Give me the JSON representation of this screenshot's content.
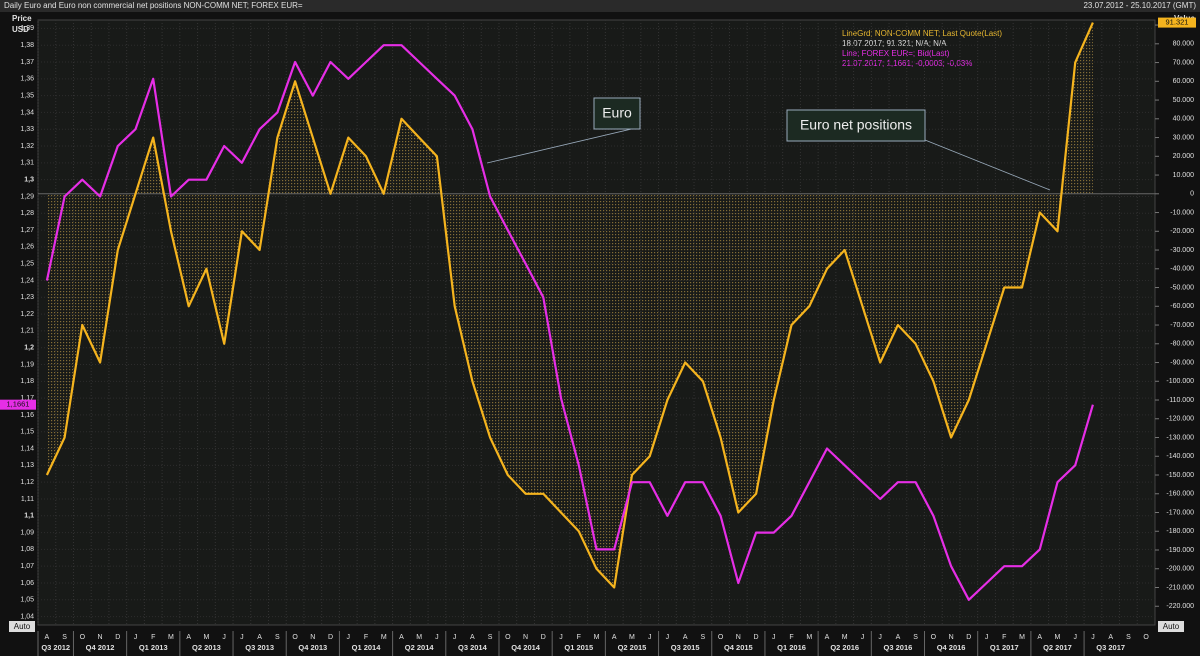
{
  "chart_data": {
    "type": "line",
    "title": "Daily Euro and Euro non commercial net positions NON-COMM NET; FOREX EUR=",
    "date_range": "23.07.2012 - 25.10.2017 (GMT)",
    "y_label": "Price",
    "y_unit": "USD",
    "y2_label": "Value",
    "auto_label": "Auto",
    "legend_lines": [
      "LineGrd; NON-COMM NET; Last Quote(Last)",
      "18.07.2017; 91.321; N/A; N/A",
      "Line; FOREX EUR=; Bid(Last)",
      "21.07.2017; 1,1661; -0,0003; -0,03%"
    ],
    "annotations": [
      "Euro",
      "Euro net positions"
    ],
    "categories": [
      "A",
      "S",
      "O",
      "N",
      "D",
      "J",
      "F",
      "M",
      "A",
      "M",
      "J",
      "J",
      "A",
      "S",
      "O",
      "N",
      "D",
      "J",
      "F",
      "M",
      "A",
      "M",
      "J",
      "J",
      "A",
      "S",
      "O",
      "N",
      "D",
      "J",
      "F",
      "M",
      "A",
      "M",
      "J",
      "J",
      "A",
      "S",
      "O",
      "N",
      "D",
      "J",
      "F",
      "M",
      "A",
      "M",
      "J",
      "J",
      "A",
      "S",
      "O",
      "N",
      "D",
      "J",
      "F",
      "M",
      "A",
      "M",
      "J",
      "J",
      "A",
      "S",
      "O"
    ],
    "quarters": [
      "Q3 2012",
      "Q4 2012",
      "Q1 2013",
      "Q2 2013",
      "Q3 2013",
      "Q4 2013",
      "Q1 2014",
      "Q2 2014",
      "Q3 2014",
      "Q4 2014",
      "Q1 2015",
      "Q2 2015",
      "Q3 2015",
      "Q4 2015",
      "Q1 2016",
      "Q2 2016",
      "Q3 2016",
      "Q4 2016",
      "Q1 2017",
      "Q2 2017",
      "Q3 2017"
    ],
    "series": [
      {
        "name": "FOREX EUR=",
        "color": "#e62ee6",
        "values": [
          1.24,
          1.29,
          1.3,
          1.29,
          1.32,
          1.33,
          1.36,
          1.29,
          1.3,
          1.3,
          1.32,
          1.31,
          1.33,
          1.34,
          1.37,
          1.35,
          1.37,
          1.36,
          1.37,
          1.38,
          1.38,
          1.37,
          1.36,
          1.35,
          1.33,
          1.29,
          1.27,
          1.25,
          1.23,
          1.17,
          1.13,
          1.08,
          1.08,
          1.12,
          1.12,
          1.1,
          1.12,
          1.12,
          1.1,
          1.06,
          1.09,
          1.09,
          1.1,
          1.12,
          1.14,
          1.13,
          1.12,
          1.11,
          1.12,
          1.12,
          1.1,
          1.07,
          1.05,
          1.06,
          1.07,
          1.07,
          1.08,
          1.12,
          1.13,
          1.1661,
          null,
          null,
          null
        ],
        "value_labels": [
          null,
          null,
          null,
          null,
          null,
          null,
          null,
          null,
          null,
          null,
          null,
          null,
          null,
          null,
          null,
          null,
          null,
          null,
          null,
          null,
          null,
          null,
          null,
          null,
          null,
          null,
          null,
          null,
          null,
          null,
          null,
          null,
          null,
          null,
          null,
          null,
          null,
          null,
          null,
          null,
          null,
          null,
          null,
          null,
          null,
          null,
          null,
          null,
          null,
          null,
          null,
          null,
          null,
          null,
          null,
          null,
          null,
          null,
          null,
          "1,1661",
          null,
          null,
          null
        ]
      },
      {
        "name": "NON-COMM NET",
        "color": "#f5b41e",
        "axis": "y2",
        "values": [
          -150000,
          -130000,
          -70000,
          -90000,
          -30000,
          0,
          30000,
          -20000,
          -60000,
          -40000,
          -80000,
          -20000,
          -30000,
          30000,
          60000,
          30000,
          0,
          30000,
          20000,
          0,
          40000,
          30000,
          20000,
          -60000,
          -100000,
          -130000,
          -150000,
          -160000,
          -160000,
          -170000,
          -180000,
          -200000,
          -210000,
          -150000,
          -140000,
          -110000,
          -90000,
          -100000,
          -130000,
          -170000,
          -160000,
          -110000,
          -70000,
          -60000,
          -40000,
          -30000,
          -60000,
          -90000,
          -70000,
          -80000,
          -100000,
          -130000,
          -110000,
          -80000,
          -50000,
          -50000,
          -10000,
          -20000,
          70000,
          91321,
          null,
          null,
          null
        ],
        "value_labels": [
          null,
          null,
          null,
          null,
          null,
          null,
          null,
          null,
          null,
          null,
          null,
          null,
          null,
          null,
          null,
          null,
          null,
          null,
          null,
          null,
          null,
          null,
          null,
          null,
          null,
          null,
          null,
          null,
          null,
          null,
          null,
          null,
          null,
          null,
          null,
          null,
          null,
          null,
          null,
          null,
          null,
          null,
          null,
          null,
          null,
          null,
          null,
          null,
          null,
          null,
          null,
          null,
          null,
          null,
          null,
          null,
          null,
          null,
          null,
          "91.321",
          null,
          null,
          null
        ]
      }
    ],
    "ylim": [
      1.035,
      1.395
    ],
    "yticks": [
      {
        "value": 1.04,
        "label": "1,04"
      },
      {
        "value": 1.05,
        "label": "1,05"
      },
      {
        "value": 1.06,
        "label": "1,06"
      },
      {
        "value": 1.07,
        "label": "1,07"
      },
      {
        "value": 1.08,
        "label": "1,08"
      },
      {
        "value": 1.09,
        "label": "1,09"
      },
      {
        "value": 1.1,
        "label": "1,1"
      },
      {
        "value": 1.11,
        "label": "1,11"
      },
      {
        "value": 1.12,
        "label": "1,12"
      },
      {
        "value": 1.13,
        "label": "1,13"
      },
      {
        "value": 1.14,
        "label": "1,14"
      },
      {
        "value": 1.15,
        "label": "1,15"
      },
      {
        "value": 1.16,
        "label": "1,16"
      },
      {
        "value": 1.17,
        "label": "1,17"
      },
      {
        "value": 1.18,
        "label": "1,18"
      },
      {
        "value": 1.19,
        "label": "1,19"
      },
      {
        "value": 1.2,
        "label": "1,2"
      },
      {
        "value": 1.21,
        "label": "1,21"
      },
      {
        "value": 1.22,
        "label": "1,22"
      },
      {
        "value": 1.23,
        "label": "1,23"
      },
      {
        "value": 1.24,
        "label": "1,24"
      },
      {
        "value": 1.25,
        "label": "1,25"
      },
      {
        "value": 1.26,
        "label": "1,26"
      },
      {
        "value": 1.27,
        "label": "1,27"
      },
      {
        "value": 1.28,
        "label": "1,28"
      },
      {
        "value": 1.29,
        "label": "1,29"
      },
      {
        "value": 1.3,
        "label": "1,3"
      },
      {
        "value": 1.31,
        "label": "1,31"
      },
      {
        "value": 1.32,
        "label": "1,32"
      },
      {
        "value": 1.33,
        "label": "1,33"
      },
      {
        "value": 1.34,
        "label": "1,34"
      },
      {
        "value": 1.35,
        "label": "1,35"
      },
      {
        "value": 1.36,
        "label": "1,36"
      },
      {
        "value": 1.37,
        "label": "1,37"
      },
      {
        "value": 1.38,
        "label": "1,38"
      },
      {
        "value": 1.39,
        "label": "1,39"
      }
    ],
    "y2lim": [
      -230000,
      92700
    ],
    "y2ticks": [
      {
        "value": 90000,
        "label": "90.000"
      },
      {
        "value": 80000,
        "label": "80.000"
      },
      {
        "value": 70000,
        "label": "70.000"
      },
      {
        "value": 60000,
        "label": "60.000"
      },
      {
        "value": 50000,
        "label": "50.000"
      },
      {
        "value": 40000,
        "label": "40.000"
      },
      {
        "value": 30000,
        "label": "30.000"
      },
      {
        "value": 20000,
        "label": "20.000"
      },
      {
        "value": 10000,
        "label": "10.000"
      },
      0,
      {
        "value": -10000,
        "label": "-10.000"
      },
      {
        "value": -20000,
        "label": "-20.000"
      },
      {
        "value": -30000,
        "label": "-30.000"
      },
      {
        "value": -40000,
        "label": "-40.000"
      },
      {
        "value": -50000,
        "label": "-50.000"
      },
      {
        "value": -60000,
        "label": "-60.000"
      },
      {
        "value": -70000,
        "label": "-70.000"
      },
      {
        "value": -80000,
        "label": "-80.000"
      },
      {
        "value": -90000,
        "label": "-90.000"
      },
      {
        "value": -100000,
        "label": "-100.000"
      },
      {
        "value": -110000,
        "label": "-110.000"
      },
      {
        "value": -120000,
        "label": "-120.000"
      },
      {
        "value": -130000,
        "label": "-130.000"
      },
      {
        "value": -140000,
        "label": "-140.000"
      },
      {
        "value": -150000,
        "label": "-150.000"
      },
      {
        "value": -160000,
        "label": "-160.000"
      },
      {
        "value": -170000,
        "label": "-170.000"
      },
      {
        "value": -180000,
        "label": "-180.000"
      },
      {
        "value": -190000,
        "label": "-190.000"
      },
      {
        "value": -200000,
        "label": "-200.000"
      },
      {
        "value": -210000,
        "label": "-210.000"
      },
      {
        "value": -220000,
        "label": "-220.000"
      }
    ],
    "grid": true
  }
}
